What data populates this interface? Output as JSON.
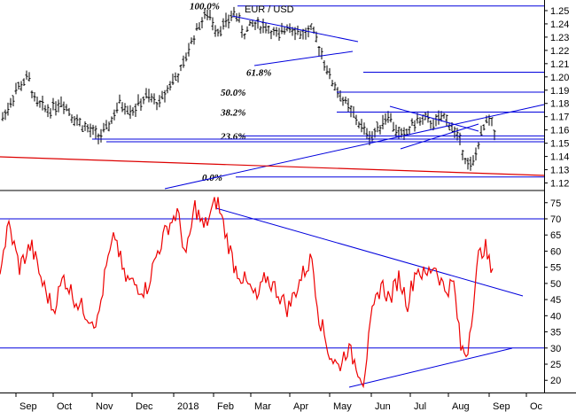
{
  "chart_data": [
    {
      "type": "ohlc",
      "title": "EUR / USD",
      "y_ticks": [
        "1.25",
        "1.24",
        "1.23",
        "1.22",
        "1.21",
        "1.20",
        "1.19",
        "1.18",
        "1.17",
        "1.16",
        "1.15",
        "1.14",
        "1.13",
        "1.12"
      ],
      "ylim": [
        1.115,
        1.258
      ],
      "fib_levels": [
        {
          "label": "100.0%",
          "value": 1.2535
        },
        {
          "label": "61.8%",
          "value": 1.2035
        },
        {
          "label": "50.0%",
          "value": 1.1885
        },
        {
          "label": "38.2%",
          "value": 1.1735
        },
        {
          "label": "23.6%",
          "value": 1.1555
        },
        {
          "label": "0.0%",
          "value": 1.1245
        }
      ],
      "series_color": "#000000",
      "overlay_color": "#0000dd",
      "trend_color": "#dd0000"
    },
    {
      "type": "line",
      "y_ticks": [
        "75",
        "70",
        "65",
        "60",
        "55",
        "50",
        "45",
        "40",
        "35",
        "30",
        "25",
        "20"
      ],
      "ylim": [
        16.5,
        78.5
      ],
      "reference_levels": [
        70,
        30
      ],
      "series_color": "#ee0000",
      "overlay_color": "#0000dd"
    }
  ],
  "x_axis": {
    "labels": [
      "Sep",
      "Oct",
      "Nov",
      "Dec",
      "2018",
      "Feb",
      "Mar",
      "Apr",
      "May",
      "Jun",
      "Jul",
      "Aug",
      "Sep",
      "Oc"
    ]
  }
}
